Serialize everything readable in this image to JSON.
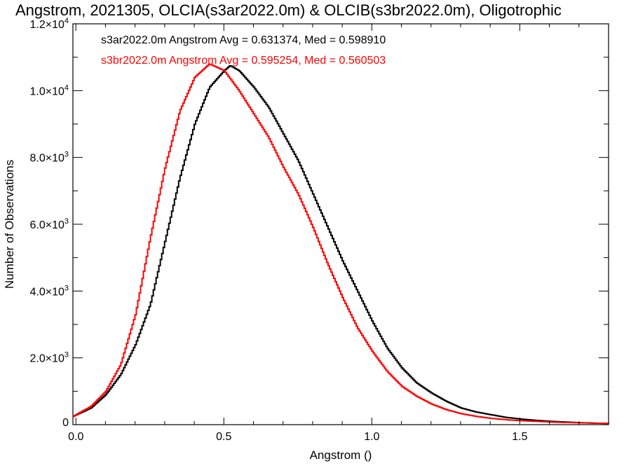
{
  "chart_data": {
    "type": "line",
    "title": "Angstrom, 2021305, OLCIA(s3ar2022.0m) & OLCIB(s3br2022.0m), Oligotrophic",
    "xlabel": "Angstrom ()",
    "ylabel": "Number of Observations",
    "xlim": [
      -0.01,
      1.8
    ],
    "ylim": [
      0,
      12000
    ],
    "x_ticks": [
      {
        "value": 0.0,
        "label": "0.0"
      },
      {
        "value": 0.5,
        "label": "0.5"
      },
      {
        "value": 1.0,
        "label": "1.0"
      },
      {
        "value": 1.5,
        "label": "1.5"
      }
    ],
    "y_ticks": [
      {
        "value": 0,
        "label": "0"
      },
      {
        "value": 2000,
        "mantissa": "2.0",
        "exp": "3"
      },
      {
        "value": 4000,
        "mantissa": "4.0",
        "exp": "3"
      },
      {
        "value": 6000,
        "mantissa": "6.0",
        "exp": "3"
      },
      {
        "value": 8000,
        "mantissa": "8.0",
        "exp": "3"
      },
      {
        "value": 10000,
        "mantissa": "1.0",
        "exp": "4"
      },
      {
        "value": 12000,
        "mantissa": "1.2",
        "exp": "4"
      }
    ],
    "times_sign": "×",
    "base_ten": "10",
    "grid": false,
    "legend_placement": "top-left",
    "series": [
      {
        "name": "s3ar2022.0m",
        "label": "s3ar2022.0m Angstrom Avg = 0.631374, Med = 0.598910",
        "color": "#000000",
        "x": [
          -0.01,
          0.05,
          0.1,
          0.15,
          0.2,
          0.25,
          0.3,
          0.35,
          0.4,
          0.45,
          0.5,
          0.52,
          0.55,
          0.6,
          0.65,
          0.7,
          0.75,
          0.8,
          0.85,
          0.9,
          0.95,
          1.0,
          1.05,
          1.1,
          1.15,
          1.2,
          1.25,
          1.3,
          1.35,
          1.4,
          1.45,
          1.5,
          1.55,
          1.6,
          1.65,
          1.7,
          1.75,
          1.8
        ],
        "y": [
          250,
          500,
          900,
          1500,
          2400,
          3600,
          5500,
          7400,
          9000,
          10100,
          10600,
          10750,
          10600,
          10100,
          9500,
          8700,
          7900,
          6900,
          5900,
          4900,
          4000,
          3100,
          2300,
          1700,
          1250,
          950,
          700,
          500,
          380,
          300,
          220,
          170,
          130,
          100,
          80,
          60,
          45,
          35
        ]
      },
      {
        "name": "s3br2022.0m",
        "label": "s3br2022.0m Angstrom Avg = 0.595254, Med = 0.560503",
        "color": "#ff0000",
        "x": [
          -0.01,
          0.05,
          0.1,
          0.15,
          0.2,
          0.25,
          0.3,
          0.35,
          0.4,
          0.45,
          0.5,
          0.55,
          0.6,
          0.65,
          0.7,
          0.75,
          0.8,
          0.85,
          0.9,
          0.95,
          1.0,
          1.05,
          1.1,
          1.15,
          1.2,
          1.25,
          1.3,
          1.35,
          1.4,
          1.45,
          1.5,
          1.55,
          1.6,
          1.65,
          1.7,
          1.75,
          1.8
        ],
        "y": [
          250,
          550,
          1000,
          1800,
          3300,
          5600,
          7700,
          9400,
          10400,
          10800,
          10600,
          10000,
          9300,
          8600,
          7700,
          6900,
          5900,
          4800,
          3800,
          2900,
          2200,
          1600,
          1150,
          850,
          620,
          450,
          330,
          250,
          190,
          150,
          120,
          100,
          80,
          65,
          55,
          45,
          35
        ]
      }
    ]
  }
}
